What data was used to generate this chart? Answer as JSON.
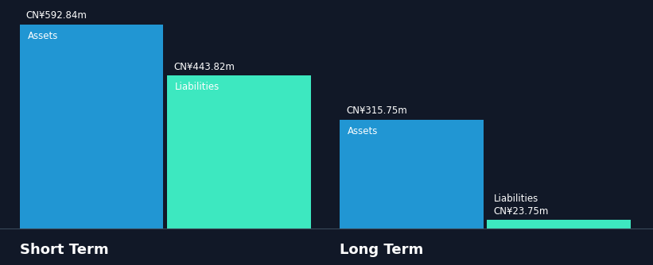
{
  "background_color": "#111827",
  "bar_color_assets": "#2196d3",
  "bar_color_liabilities": "#3de8c0",
  "text_color_white": "#ffffff",
  "short_term_assets": 592.84,
  "short_term_liabilities": 443.82,
  "long_term_assets": 315.75,
  "long_term_liabilities": 23.75,
  "short_term_label": "Short Term",
  "long_term_label": "Long Term",
  "assets_label": "Assets",
  "liabilities_label": "Liabilities",
  "label_fontsize": 8.5,
  "value_fontsize": 8.5,
  "group_label_fontsize": 13
}
